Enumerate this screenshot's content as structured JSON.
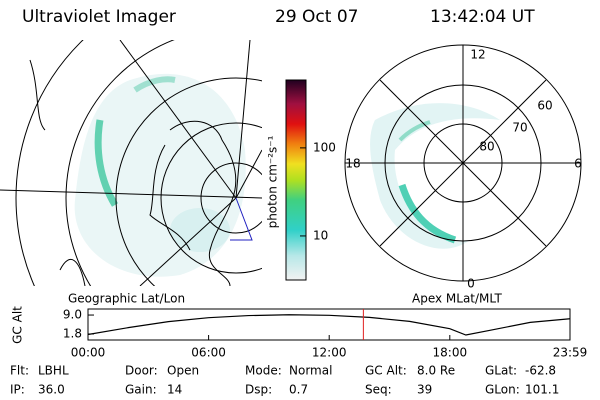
{
  "header": {
    "title": "Ultraviolet Imager",
    "date": "29 Oct 07",
    "time": "13:42:04 UT"
  },
  "geo_panel": {
    "label": "Geographic Lat/Lon"
  },
  "colorbar": {
    "label": "photon cm⁻²s⁻¹",
    "log_scale": true,
    "clim": [
      3.16,
      590
    ],
    "ticks": [
      10,
      100
    ]
  },
  "apex_panel": {
    "label": "Apex MLat/MLT",
    "mlt_labels": [
      "12",
      "6",
      "0",
      "18"
    ],
    "mlat_labels": [
      "80",
      "70",
      "60"
    ]
  },
  "altitude_chart": {
    "type": "line",
    "y_label": "GC Alt",
    "ylim": [
      -0.5,
      11.3
    ],
    "yticks": [
      {
        "value": 9.0,
        "label": "9.0"
      },
      {
        "value": 1.8,
        "label": "1.8"
      }
    ],
    "xlim": [
      0,
      23.98
    ],
    "xticks": [
      {
        "value": 0,
        "label": "00:00"
      },
      {
        "value": 6,
        "label": "06:00"
      },
      {
        "value": 12,
        "label": "12:00"
      },
      {
        "value": 18,
        "label": "18:00"
      },
      {
        "value": 23.98,
        "label": "23:59"
      }
    ],
    "x": [
      0,
      2,
      4,
      6,
      8,
      10,
      12,
      14,
      16,
      18,
      18.8,
      20,
      22,
      23.98
    ],
    "values": [
      1.6,
      4.2,
      6.5,
      8.0,
      8.8,
      9.1,
      8.9,
      8.1,
      6.6,
      3.8,
      1.4,
      3.2,
      6.2,
      7.6
    ],
    "color": "#000000",
    "marker_x": 13.7,
    "marker_color": "#e02020"
  },
  "status": [
    [
      {
        "label": "Flt:",
        "value": "LBHL"
      },
      {
        "label": "IP:",
        "value": "36.0"
      }
    ],
    [
      {
        "label": "Door:",
        "value": "Open"
      },
      {
        "label": "Gain:",
        "value": "14"
      }
    ],
    [
      {
        "label": "Mode:",
        "value": "Normal"
      },
      {
        "label": "Dsp:",
        "value": "0.7"
      }
    ],
    [
      {
        "label": "GC Alt:",
        "value": "8.0 Re"
      },
      {
        "label": "Seq:",
        "value": "39"
      }
    ],
    [
      {
        "label": "GLat:",
        "value": "-62.8"
      },
      {
        "label": "GLon:",
        "value": "101.1"
      }
    ]
  ]
}
